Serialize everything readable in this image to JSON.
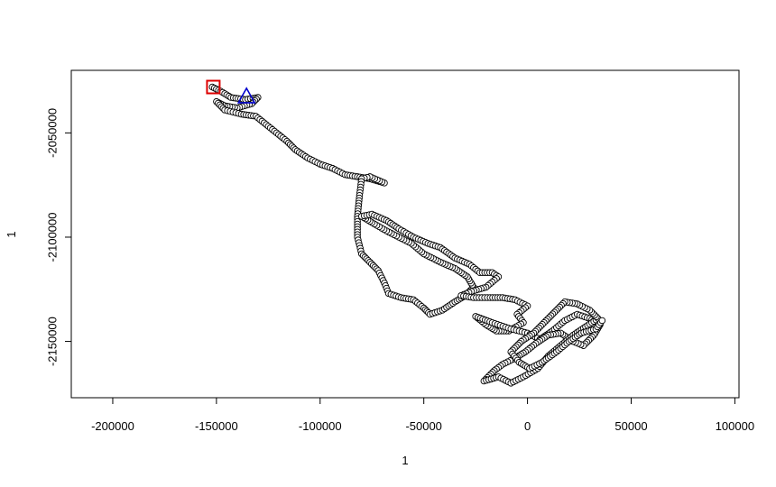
{
  "chart_data": {
    "type": "scatter",
    "title": "",
    "xlabel": "1",
    "ylabel": "1",
    "xlim": [
      -220000,
      102000
    ],
    "ylim": [
      -2177000,
      -2020000
    ],
    "xticks": [
      -200000,
      -150000,
      -100000,
      -50000,
      0,
      50000,
      100000
    ],
    "xtick_labels": [
      "-200000",
      "-150000",
      "-100000",
      "-50000",
      "0",
      "50000",
      "100000"
    ],
    "yticks": [
      -2050000,
      -2100000,
      -2150000
    ],
    "ytick_labels": [
      "-2050000",
      "-2100000",
      "-2150000"
    ],
    "grid": false,
    "point_style": "open-circle",
    "track": [
      [
        -152000,
        -2028000
      ],
      [
        -148000,
        -2030000
      ],
      [
        -143000,
        -2033000
      ],
      [
        -136000,
        -2034000
      ],
      [
        -130000,
        -2033000
      ],
      [
        -133000,
        -2036000
      ],
      [
        -140000,
        -2038000
      ],
      [
        -146000,
        -2037000
      ],
      [
        -150000,
        -2035000
      ],
      [
        -146000,
        -2039000
      ],
      [
        -138000,
        -2041000
      ],
      [
        -131000,
        -2042000
      ],
      [
        -126000,
        -2046000
      ],
      [
        -121000,
        -2050000
      ],
      [
        -116000,
        -2054000
      ],
      [
        -112000,
        -2058000
      ],
      [
        -106000,
        -2062000
      ],
      [
        -100000,
        -2065000
      ],
      [
        -94000,
        -2067000
      ],
      [
        -88000,
        -2070000
      ],
      [
        -82000,
        -2071000
      ],
      [
        -76000,
        -2072000
      ],
      [
        -69000,
        -2074000
      ],
      [
        -76000,
        -2071000
      ],
      [
        -80000,
        -2072000
      ],
      [
        -81000,
        -2080000
      ],
      [
        -82000,
        -2090000
      ],
      [
        -82000,
        -2100000
      ],
      [
        -80000,
        -2108000
      ],
      [
        -76000,
        -2112000
      ],
      [
        -72000,
        -2116000
      ],
      [
        -69000,
        -2122000
      ],
      [
        -67000,
        -2127000
      ],
      [
        -61000,
        -2129000
      ],
      [
        -55000,
        -2130000
      ],
      [
        -50000,
        -2134000
      ],
      [
        -47000,
        -2137000
      ],
      [
        -41000,
        -2135000
      ],
      [
        -35000,
        -2131000
      ],
      [
        -30000,
        -2128000
      ],
      [
        -26000,
        -2124000
      ],
      [
        -29000,
        -2119000
      ],
      [
        -35000,
        -2115000
      ],
      [
        -42000,
        -2112000
      ],
      [
        -50000,
        -2108000
      ],
      [
        -56000,
        -2103000
      ],
      [
        -62000,
        -2100000
      ],
      [
        -68000,
        -2097000
      ],
      [
        -75000,
        -2093000
      ],
      [
        -80000,
        -2090000
      ],
      [
        -75000,
        -2089000
      ],
      [
        -68000,
        -2092000
      ],
      [
        -62000,
        -2096000
      ],
      [
        -55000,
        -2100000
      ],
      [
        -48000,
        -2103000
      ],
      [
        -42000,
        -2105000
      ],
      [
        -35000,
        -2110000
      ],
      [
        -28000,
        -2113000
      ],
      [
        -23000,
        -2117000
      ],
      [
        -17000,
        -2117000
      ],
      [
        -14000,
        -2119000
      ],
      [
        -20000,
        -2124000
      ],
      [
        -27000,
        -2126000
      ],
      [
        -32000,
        -2128000
      ],
      [
        -26000,
        -2129000
      ],
      [
        -18000,
        -2129000
      ],
      [
        -12000,
        -2129000
      ],
      [
        -6000,
        -2130000
      ],
      [
        0,
        -2133000
      ],
      [
        -5000,
        -2137000
      ],
      [
        -2000,
        -2141000
      ],
      [
        -9000,
        -2145000
      ],
      [
        -15000,
        -2145000
      ],
      [
        -20000,
        -2142000
      ],
      [
        -25000,
        -2138000
      ],
      [
        -17000,
        -2141000
      ],
      [
        -8000,
        -2144000
      ],
      [
        0,
        -2146000
      ],
      [
        6000,
        -2149000
      ],
      [
        12000,
        -2145000
      ],
      [
        18000,
        -2140000
      ],
      [
        24000,
        -2137000
      ],
      [
        30000,
        -2139000
      ],
      [
        35000,
        -2142000
      ],
      [
        32000,
        -2147000
      ],
      [
        27000,
        -2152000
      ],
      [
        22000,
        -2150000
      ],
      [
        16000,
        -2146000
      ],
      [
        10000,
        -2147000
      ],
      [
        4000,
        -2151000
      ],
      [
        -1000,
        -2155000
      ],
      [
        -6000,
        -2158000
      ],
      [
        -12000,
        -2161000
      ],
      [
        -16000,
        -2164000
      ],
      [
        -21000,
        -2169000
      ],
      [
        -14000,
        -2167000
      ],
      [
        -8000,
        -2170000
      ],
      [
        -2000,
        -2167000
      ],
      [
        5000,
        -2163000
      ],
      [
        10000,
        -2157000
      ],
      [
        16000,
        -2152000
      ],
      [
        22000,
        -2147000
      ],
      [
        28000,
        -2143000
      ],
      [
        34000,
        -2139000
      ],
      [
        30000,
        -2135000
      ],
      [
        24000,
        -2132000
      ],
      [
        18000,
        -2131000
      ],
      [
        13000,
        -2136000
      ],
      [
        8000,
        -2141000
      ],
      [
        3000,
        -2146000
      ],
      [
        -3000,
        -2150000
      ],
      [
        -8000,
        -2155000
      ],
      [
        -4000,
        -2160000
      ],
      [
        1000,
        -2163000
      ],
      [
        7000,
        -2160000
      ],
      [
        14000,
        -2155000
      ],
      [
        20000,
        -2150000
      ],
      [
        26000,
        -2146000
      ],
      [
        33000,
        -2144000
      ],
      [
        36000,
        -2140000
      ]
    ],
    "markers": [
      {
        "shape": "square",
        "color": "#dd0000",
        "x": -151500,
        "y": -2028000
      },
      {
        "shape": "triangle",
        "color": "#0000cc",
        "x": -135500,
        "y": -2032500
      }
    ]
  }
}
